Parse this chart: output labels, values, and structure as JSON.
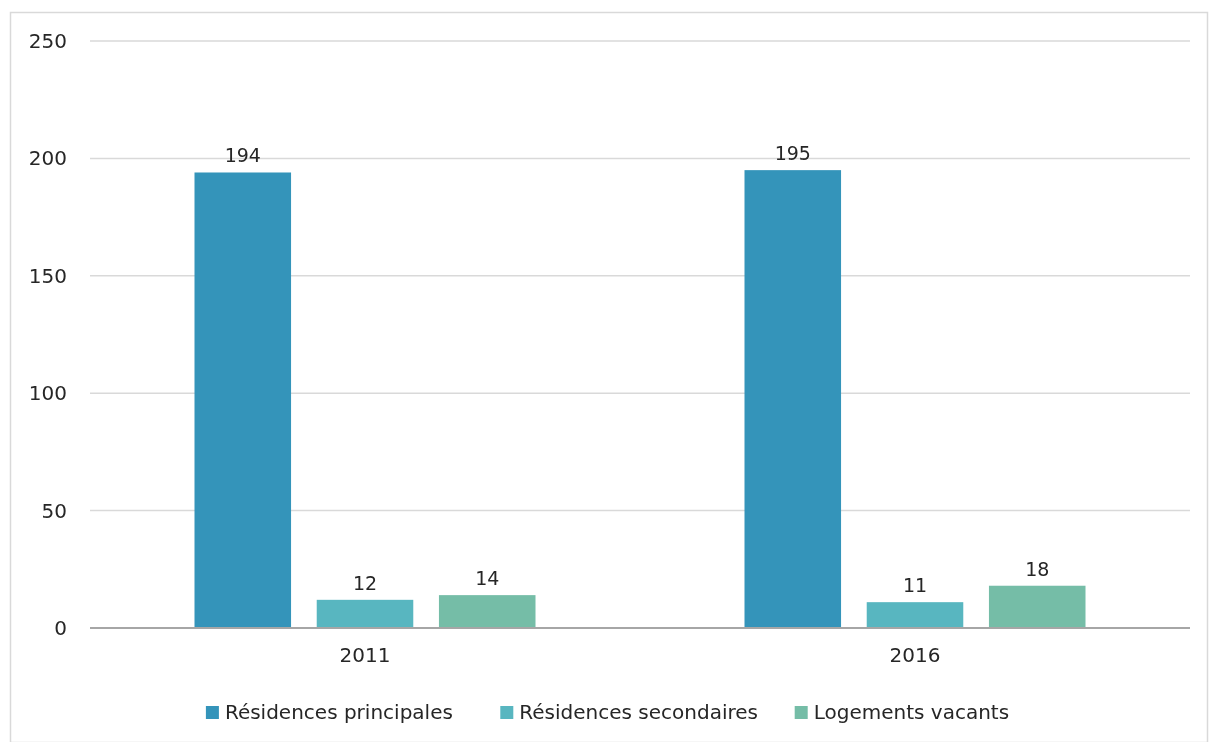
{
  "chart_data": {
    "type": "bar",
    "categories": [
      "2011",
      "2016"
    ],
    "series": [
      {
        "name": "Résidences principales",
        "color": "#3494ba",
        "values": [
          194,
          195
        ]
      },
      {
        "name": "Résidences secondaires",
        "color": "#58b6c0",
        "values": [
          12,
          11
        ]
      },
      {
        "name": "Logements vacants",
        "color": "#75bda7",
        "values": [
          14,
          18
        ]
      }
    ],
    "ylim": [
      0,
      250
    ],
    "yticks": [
      0,
      50,
      100,
      150,
      200,
      250
    ],
    "grid": "y",
    "legend": "bottom",
    "data_labels": true
  }
}
